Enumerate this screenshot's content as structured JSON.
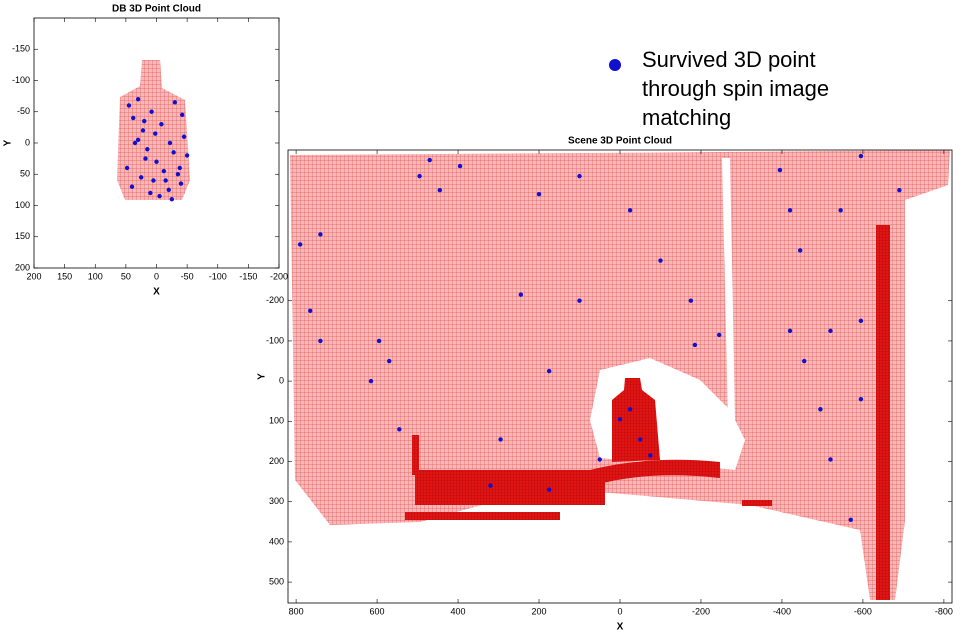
{
  "chart_data": [
    {
      "type": "scatter",
      "title": "DB 3D Point Cloud",
      "xlabel": "X",
      "ylabel": "Y",
      "xlim": [
        200,
        -200
      ],
      "ylim": [
        200,
        -200
      ],
      "xticks": [
        200,
        150,
        100,
        50,
        0,
        -50,
        -100,
        -150,
        -200
      ],
      "yticks": [
        -150,
        -100,
        -50,
        0,
        50,
        100,
        150,
        200
      ],
      "grid": false,
      "series": [
        {
          "color": "#1010d0",
          "x": [
            45,
            38,
            30,
            22,
            15,
            8,
            0,
            -8,
            -15,
            -22,
            -30,
            -38,
            -45,
            -50,
            40,
            25,
            10,
            -5,
            -20,
            -35,
            35,
            18,
            2,
            -12,
            -28,
            -42,
            48,
            30,
            5,
            -25,
            -40,
            20
          ],
          "y": [
            -60,
            -40,
            -70,
            -20,
            10,
            -50,
            30,
            -30,
            60,
            0,
            -65,
            40,
            -10,
            20,
            70,
            55,
            80,
            85,
            75,
            50,
            0,
            25,
            -15,
            45,
            15,
            -45,
            40,
            -5,
            60,
            90,
            65,
            -35
          ]
        }
      ]
    },
    {
      "type": "scatter",
      "title": "Scene 3D Point Cloud",
      "xlabel": "X",
      "ylabel": "Y",
      "xlim": [
        820,
        -820
      ],
      "ylim": [
        552,
        -575
      ],
      "xticks": [
        800,
        600,
        400,
        200,
        0,
        -200,
        -400,
        -600,
        -800
      ],
      "yticks": [
        -200,
        -100,
        0,
        100,
        200,
        300,
        400,
        500
      ],
      "grid": false,
      "series": [
        {
          "name": "Survived 3D point through spin image matching",
          "color": "#1010d0",
          "x": [
            470,
            495,
            445,
            790,
            740,
            765,
            740,
            595,
            570,
            615,
            545,
            395,
            200,
            100,
            -25,
            -100,
            -175,
            -185,
            -395,
            -420,
            -445,
            -420,
            -455,
            -495,
            -520,
            -520,
            -595,
            -545,
            -690,
            -595,
            175,
            295,
            320,
            175,
            -25,
            -50,
            0,
            -75,
            50,
            -245,
            100,
            245,
            -595,
            -570
          ],
          "y": [
            -550,
            -510,
            -475,
            -340,
            -365,
            -175,
            -100,
            -100,
            -50,
            0,
            120,
            -535,
            -465,
            -510,
            -425,
            -300,
            -200,
            -90,
            -525,
            -425,
            -325,
            -125,
            -50,
            70,
            195,
            -125,
            -150,
            -425,
            -475,
            -560,
            -25,
            145,
            260,
            270,
            70,
            145,
            95,
            185,
            195,
            -115,
            -200,
            -215,
            45,
            345
          ]
        }
      ]
    }
  ]
}
